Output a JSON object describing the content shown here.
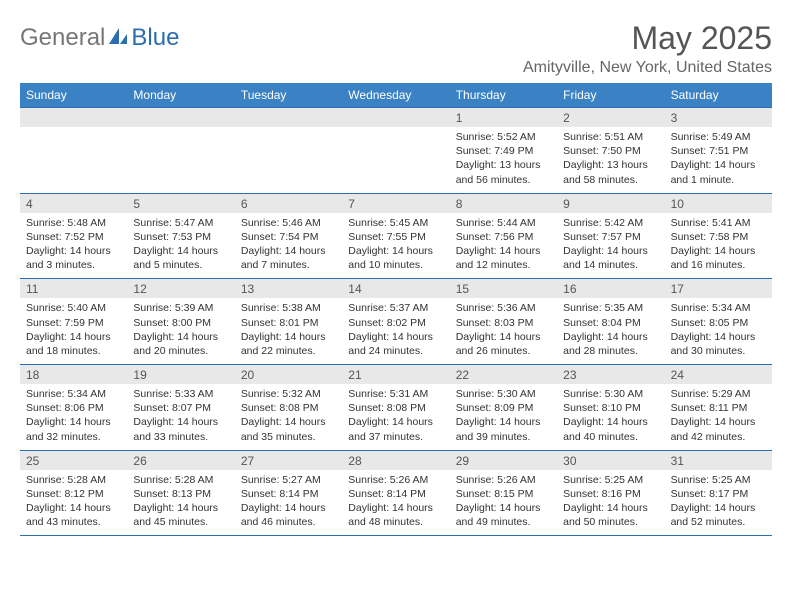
{
  "logo": {
    "general": "General",
    "blue": "Blue"
  },
  "title": "May 2025",
  "location": "Amityville, New York, United States",
  "colors": {
    "header_bg": "#3b82c4",
    "border": "#2a6db0",
    "date_strip": "#e8e8e8",
    "text": "#333333"
  },
  "day_names": [
    "Sunday",
    "Monday",
    "Tuesday",
    "Wednesday",
    "Thursday",
    "Friday",
    "Saturday"
  ],
  "weeks": [
    [
      {
        "date": "",
        "sunrise": "",
        "sunset": "",
        "daylight": ""
      },
      {
        "date": "",
        "sunrise": "",
        "sunset": "",
        "daylight": ""
      },
      {
        "date": "",
        "sunrise": "",
        "sunset": "",
        "daylight": ""
      },
      {
        "date": "",
        "sunrise": "",
        "sunset": "",
        "daylight": ""
      },
      {
        "date": "1",
        "sunrise": "Sunrise: 5:52 AM",
        "sunset": "Sunset: 7:49 PM",
        "daylight": "Daylight: 13 hours and 56 minutes."
      },
      {
        "date": "2",
        "sunrise": "Sunrise: 5:51 AM",
        "sunset": "Sunset: 7:50 PM",
        "daylight": "Daylight: 13 hours and 58 minutes."
      },
      {
        "date": "3",
        "sunrise": "Sunrise: 5:49 AM",
        "sunset": "Sunset: 7:51 PM",
        "daylight": "Daylight: 14 hours and 1 minute."
      }
    ],
    [
      {
        "date": "4",
        "sunrise": "Sunrise: 5:48 AM",
        "sunset": "Sunset: 7:52 PM",
        "daylight": "Daylight: 14 hours and 3 minutes."
      },
      {
        "date": "5",
        "sunrise": "Sunrise: 5:47 AM",
        "sunset": "Sunset: 7:53 PM",
        "daylight": "Daylight: 14 hours and 5 minutes."
      },
      {
        "date": "6",
        "sunrise": "Sunrise: 5:46 AM",
        "sunset": "Sunset: 7:54 PM",
        "daylight": "Daylight: 14 hours and 7 minutes."
      },
      {
        "date": "7",
        "sunrise": "Sunrise: 5:45 AM",
        "sunset": "Sunset: 7:55 PM",
        "daylight": "Daylight: 14 hours and 10 minutes."
      },
      {
        "date": "8",
        "sunrise": "Sunrise: 5:44 AM",
        "sunset": "Sunset: 7:56 PM",
        "daylight": "Daylight: 14 hours and 12 minutes."
      },
      {
        "date": "9",
        "sunrise": "Sunrise: 5:42 AM",
        "sunset": "Sunset: 7:57 PM",
        "daylight": "Daylight: 14 hours and 14 minutes."
      },
      {
        "date": "10",
        "sunrise": "Sunrise: 5:41 AM",
        "sunset": "Sunset: 7:58 PM",
        "daylight": "Daylight: 14 hours and 16 minutes."
      }
    ],
    [
      {
        "date": "11",
        "sunrise": "Sunrise: 5:40 AM",
        "sunset": "Sunset: 7:59 PM",
        "daylight": "Daylight: 14 hours and 18 minutes."
      },
      {
        "date": "12",
        "sunrise": "Sunrise: 5:39 AM",
        "sunset": "Sunset: 8:00 PM",
        "daylight": "Daylight: 14 hours and 20 minutes."
      },
      {
        "date": "13",
        "sunrise": "Sunrise: 5:38 AM",
        "sunset": "Sunset: 8:01 PM",
        "daylight": "Daylight: 14 hours and 22 minutes."
      },
      {
        "date": "14",
        "sunrise": "Sunrise: 5:37 AM",
        "sunset": "Sunset: 8:02 PM",
        "daylight": "Daylight: 14 hours and 24 minutes."
      },
      {
        "date": "15",
        "sunrise": "Sunrise: 5:36 AM",
        "sunset": "Sunset: 8:03 PM",
        "daylight": "Daylight: 14 hours and 26 minutes."
      },
      {
        "date": "16",
        "sunrise": "Sunrise: 5:35 AM",
        "sunset": "Sunset: 8:04 PM",
        "daylight": "Daylight: 14 hours and 28 minutes."
      },
      {
        "date": "17",
        "sunrise": "Sunrise: 5:34 AM",
        "sunset": "Sunset: 8:05 PM",
        "daylight": "Daylight: 14 hours and 30 minutes."
      }
    ],
    [
      {
        "date": "18",
        "sunrise": "Sunrise: 5:34 AM",
        "sunset": "Sunset: 8:06 PM",
        "daylight": "Daylight: 14 hours and 32 minutes."
      },
      {
        "date": "19",
        "sunrise": "Sunrise: 5:33 AM",
        "sunset": "Sunset: 8:07 PM",
        "daylight": "Daylight: 14 hours and 33 minutes."
      },
      {
        "date": "20",
        "sunrise": "Sunrise: 5:32 AM",
        "sunset": "Sunset: 8:08 PM",
        "daylight": "Daylight: 14 hours and 35 minutes."
      },
      {
        "date": "21",
        "sunrise": "Sunrise: 5:31 AM",
        "sunset": "Sunset: 8:08 PM",
        "daylight": "Daylight: 14 hours and 37 minutes."
      },
      {
        "date": "22",
        "sunrise": "Sunrise: 5:30 AM",
        "sunset": "Sunset: 8:09 PM",
        "daylight": "Daylight: 14 hours and 39 minutes."
      },
      {
        "date": "23",
        "sunrise": "Sunrise: 5:30 AM",
        "sunset": "Sunset: 8:10 PM",
        "daylight": "Daylight: 14 hours and 40 minutes."
      },
      {
        "date": "24",
        "sunrise": "Sunrise: 5:29 AM",
        "sunset": "Sunset: 8:11 PM",
        "daylight": "Daylight: 14 hours and 42 minutes."
      }
    ],
    [
      {
        "date": "25",
        "sunrise": "Sunrise: 5:28 AM",
        "sunset": "Sunset: 8:12 PM",
        "daylight": "Daylight: 14 hours and 43 minutes."
      },
      {
        "date": "26",
        "sunrise": "Sunrise: 5:28 AM",
        "sunset": "Sunset: 8:13 PM",
        "daylight": "Daylight: 14 hours and 45 minutes."
      },
      {
        "date": "27",
        "sunrise": "Sunrise: 5:27 AM",
        "sunset": "Sunset: 8:14 PM",
        "daylight": "Daylight: 14 hours and 46 minutes."
      },
      {
        "date": "28",
        "sunrise": "Sunrise: 5:26 AM",
        "sunset": "Sunset: 8:14 PM",
        "daylight": "Daylight: 14 hours and 48 minutes."
      },
      {
        "date": "29",
        "sunrise": "Sunrise: 5:26 AM",
        "sunset": "Sunset: 8:15 PM",
        "daylight": "Daylight: 14 hours and 49 minutes."
      },
      {
        "date": "30",
        "sunrise": "Sunrise: 5:25 AM",
        "sunset": "Sunset: 8:16 PM",
        "daylight": "Daylight: 14 hours and 50 minutes."
      },
      {
        "date": "31",
        "sunrise": "Sunrise: 5:25 AM",
        "sunset": "Sunset: 8:17 PM",
        "daylight": "Daylight: 14 hours and 52 minutes."
      }
    ]
  ]
}
